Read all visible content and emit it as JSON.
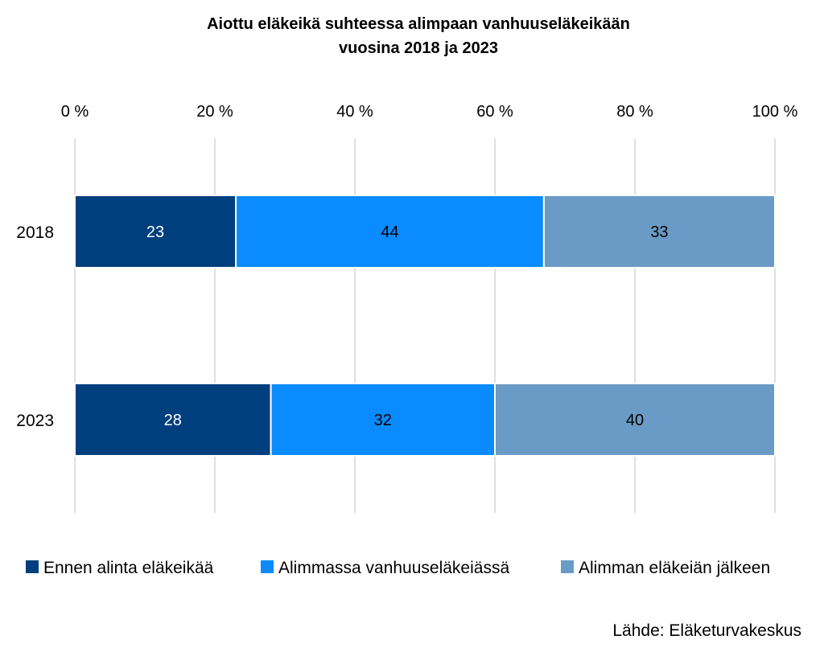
{
  "chart_data": {
    "type": "bar",
    "orientation": "horizontal",
    "stacked": "percent",
    "title": "Aiottu eläkeikä suhteessa alimpaan vanhuuseläkeikään",
    "subtitle": "vuosina 2018 ja 2023",
    "categories": [
      "2018",
      "2023"
    ],
    "series": [
      {
        "name": "Ennen alinta eläkeikää",
        "values": [
          23,
          28
        ],
        "color": "#003f7e",
        "label_color": "#ffffff"
      },
      {
        "name": "Alimmassa vanhuuseläkeiässä",
        "values": [
          44,
          32
        ],
        "color": "#0a8bff",
        "label_color": "#000000"
      },
      {
        "name": "Alimman eläkeiän jälkeen",
        "values": [
          33,
          40
        ],
        "color": "#6a9bc6",
        "label_color": "#000000"
      }
    ],
    "xlim": [
      0,
      100
    ],
    "xticks": [
      0,
      20,
      40,
      60,
      80,
      100
    ],
    "xtick_labels": [
      "0 %",
      "20 %",
      "40 %",
      "60 %",
      "80 %",
      "100 %"
    ],
    "x_axis_position": "top",
    "grid": true,
    "legend_position": "bottom",
    "source": "Lähde: Eläketurvakeskus"
  }
}
